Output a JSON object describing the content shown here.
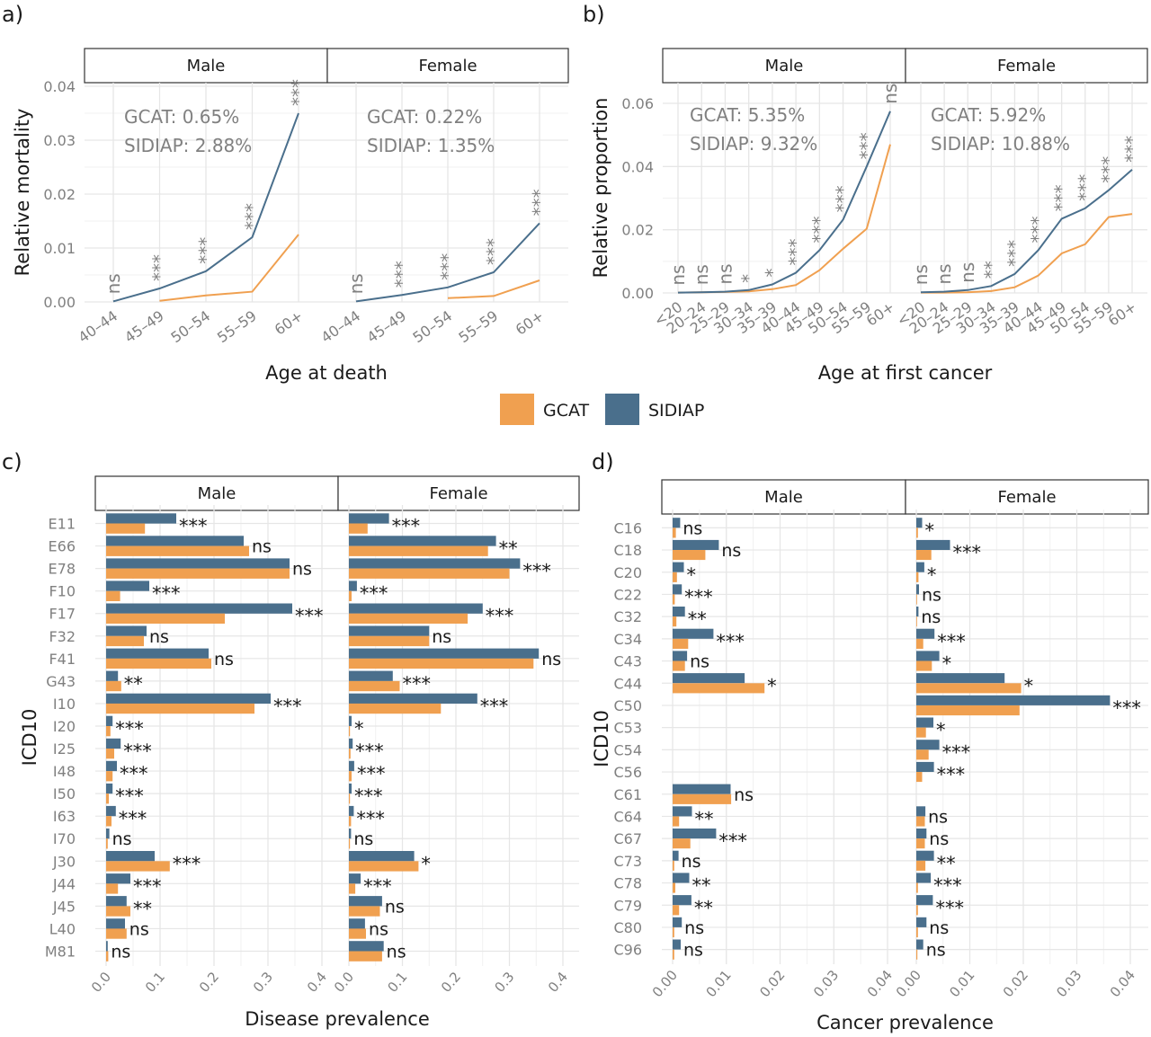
{
  "legend": {
    "items": [
      {
        "name": "GCAT",
        "color": "#f0a050"
      },
      {
        "name": "SIDIAP",
        "color": "#4a6f8c"
      }
    ]
  },
  "chart_data": [
    {
      "panel_label": "a)",
      "type": "line",
      "xlabel": "Age at death",
      "ylabel": "Relative mortality",
      "categories": [
        "40–44",
        "45–49",
        "50–54",
        "55–59",
        "60+"
      ],
      "yticks": [
        "0.00",
        "0.01",
        "0.02",
        "0.03",
        "0.04"
      ],
      "ylim": [
        0,
        0.04
      ],
      "grid": true,
      "facets": [
        {
          "name": "Male",
          "annotation": [
            "GCAT: 0.65%",
            "SIDIAP: 2.88%"
          ],
          "series": [
            {
              "name": "GCAT",
              "values": [
                null,
                0.0002,
                0.0012,
                0.0019,
                0.0125
              ]
            },
            {
              "name": "SIDIAP",
              "values": [
                0.0001,
                0.0025,
                0.0057,
                0.012,
                0.035
              ]
            }
          ],
          "significance": [
            "ns",
            "***",
            "***",
            "***",
            "***"
          ]
        },
        {
          "name": "Female",
          "annotation": [
            "GCAT: 0.22%",
            "SIDIAP: 1.35%"
          ],
          "series": [
            {
              "name": "GCAT",
              "values": [
                null,
                null,
                0.0007,
                0.0011,
                0.004
              ]
            },
            {
              "name": "SIDIAP",
              "values": [
                0.0001,
                0.0013,
                0.0027,
                0.0055,
                0.0146
              ]
            }
          ],
          "significance": [
            "ns",
            "***",
            "***",
            "***",
            "***"
          ]
        }
      ]
    },
    {
      "panel_label": "b)",
      "type": "line",
      "xlabel": "Age at first cancer",
      "ylabel": "Relative proportion",
      "categories": [
        "<20",
        "20–24",
        "25–29",
        "30–34",
        "35–39",
        "40–44",
        "45–49",
        "50–54",
        "55–59",
        "60+"
      ],
      "yticks": [
        "0.00",
        "0.02",
        "0.04",
        "0.06"
      ],
      "ylim": [
        0,
        0.06
      ],
      "grid": true,
      "facets": [
        {
          "name": "Male",
          "annotation": [
            "GCAT: 5.35%",
            "SIDIAP: 9.32%"
          ],
          "series": [
            {
              "name": "GCAT",
              "values": [
                0.0001,
                0.0002,
                0.0003,
                0.0005,
                0.0012,
                0.0025,
                0.0072,
                0.014,
                0.0203,
                0.047
              ]
            },
            {
              "name": "SIDIAP",
              "values": [
                0.0001,
                0.0002,
                0.0004,
                0.0009,
                0.0027,
                0.0064,
                0.0135,
                0.0232,
                0.04,
                0.0575
              ]
            }
          ],
          "significance": [
            "ns",
            "ns",
            "ns",
            "*",
            "*",
            "***",
            "***",
            "***",
            "***",
            "ns"
          ]
        },
        {
          "name": "Female",
          "annotation": [
            "GCAT: 5.92%",
            "SIDIAP: 10.88%"
          ],
          "series": [
            {
              "name": "GCAT",
              "values": [
                0.0001,
                0.0001,
                0.0002,
                0.0006,
                0.0018,
                0.0055,
                0.0125,
                0.0154,
                0.024,
                0.025
              ]
            },
            {
              "name": "SIDIAP",
              "values": [
                0.0002,
                0.0004,
                0.0009,
                0.0022,
                0.006,
                0.0135,
                0.0235,
                0.0268,
                0.0325,
                0.039
              ]
            }
          ],
          "significance": [
            "ns",
            "ns",
            "ns",
            "**",
            "***",
            "***",
            "***",
            "***",
            "***",
            "***"
          ]
        }
      ]
    },
    {
      "panel_label": "c)",
      "type": "bar",
      "orientation": "horizontal",
      "xlabel": "Disease prevalence",
      "ylabel": "ICD10",
      "categories": [
        "E11",
        "E66",
        "E78",
        "F10",
        "F17",
        "F32",
        "F41",
        "G43",
        "I10",
        "I20",
        "I25",
        "I48",
        "I50",
        "I63",
        "I70",
        "J30",
        "J44",
        "J45",
        "L40",
        "M81"
      ],
      "xticks": [
        "0.0",
        "0.1",
        "0.2",
        "0.3",
        "0.4"
      ],
      "xlim": [
        0,
        0.4
      ],
      "grid": true,
      "facets": [
        {
          "name": "Male",
          "series": [
            {
              "name": "SIDIAP",
              "values": [
                0.13,
                0.255,
                0.34,
                0.08,
                0.345,
                0.075,
                0.19,
                0.022,
                0.305,
                0.012,
                0.027,
                0.02,
                0.012,
                0.018,
                0.006,
                0.09,
                0.045,
                0.038,
                0.035,
                0.003
              ]
            },
            {
              "name": "GCAT",
              "values": [
                0.072,
                0.265,
                0.34,
                0.026,
                0.22,
                0.07,
                0.195,
                0.028,
                0.275,
                0.008,
                0.015,
                0.012,
                0.005,
                0.01,
                0.003,
                0.118,
                0.022,
                0.045,
                0.038,
                0.004
              ]
            }
          ],
          "significance": [
            "***",
            "ns",
            "ns",
            "***",
            "***",
            "ns",
            "ns",
            "**",
            "***",
            "***",
            "***",
            "***",
            "***",
            "***",
            "ns",
            "***",
            "***",
            "**",
            "ns",
            "ns"
          ]
        },
        {
          "name": "Female",
          "series": [
            {
              "name": "SIDIAP",
              "values": [
                0.075,
                0.275,
                0.32,
                0.015,
                0.25,
                0.15,
                0.355,
                0.082,
                0.24,
                0.005,
                0.007,
                0.01,
                0.005,
                0.009,
                0.004,
                0.122,
                0.022,
                0.062,
                0.03,
                0.065
              ]
            },
            {
              "name": "GCAT",
              "values": [
                0.035,
                0.26,
                0.3,
                0.005,
                0.222,
                0.15,
                0.345,
                0.095,
                0.172,
                0.002,
                0.003,
                0.005,
                0.002,
                0.004,
                0.002,
                0.13,
                0.012,
                0.058,
                0.032,
                0.062
              ]
            }
          ],
          "significance": [
            "***",
            "**",
            "***",
            "***",
            "***",
            "ns",
            "ns",
            "***",
            "***",
            "*",
            "***",
            "***",
            "***",
            "***",
            "ns",
            "*",
            "***",
            "ns",
            "ns",
            "ns"
          ]
        }
      ]
    },
    {
      "panel_label": "d)",
      "type": "bar",
      "orientation": "horizontal",
      "xlabel": "Cancer prevalence",
      "ylabel": "ICD10",
      "categories": [
        "C16",
        "C18",
        "C20",
        "C22",
        "C32",
        "C34",
        "C43",
        "C44",
        "C50",
        "C53",
        "C54",
        "C56",
        "C61",
        "C64",
        "C67",
        "C73",
        "C78",
        "C79",
        "C80",
        "C96"
      ],
      "xticks": [
        "0.00",
        "0.01",
        "0.02",
        "0.03",
        "0.04"
      ],
      "xlim": [
        0,
        0.04
      ],
      "grid": true,
      "facets": [
        {
          "name": "Male",
          "series": [
            {
              "name": "SIDIAP",
              "values": [
                0.0014,
                0.0086,
                0.0021,
                0.0017,
                0.0023,
                0.0076,
                0.0027,
                0.0134,
                null,
                null,
                null,
                null,
                0.0108,
                0.0036,
                0.0081,
                0.0011,
                0.0031,
                0.0035,
                0.0017,
                0.0015
              ]
            },
            {
              "name": "GCAT",
              "values": [
                0.0006,
                0.0061,
                0.0008,
                0.0004,
                0.0007,
                0.0029,
                0.0023,
                0.0171,
                null,
                null,
                null,
                null,
                0.0109,
                0.0012,
                0.0033,
                0.0003,
                0.0005,
                0.0012,
                0.0003,
                0.0003
              ]
            }
          ],
          "significance": [
            "ns",
            "ns",
            "*",
            "***",
            "**",
            "***",
            "ns",
            "*",
            null,
            null,
            null,
            null,
            "ns",
            "**",
            "***",
            "ns",
            "**",
            "**",
            "ns",
            "ns"
          ]
        },
        {
          "name": "Female",
          "series": [
            {
              "name": "SIDIAP",
              "values": [
                0.0011,
                0.0063,
                0.0015,
                0.0005,
                0.0004,
                0.0034,
                0.0043,
                0.0165,
                0.0362,
                0.0032,
                0.0043,
                0.0033,
                null,
                0.0017,
                0.0019,
                0.0033,
                0.0027,
                0.0031,
                0.0019,
                0.0013
              ]
            },
            {
              "name": "GCAT",
              "values": [
                0.0003,
                0.0028,
                0.0004,
                0.0001,
                0.0001,
                0.0013,
                0.0029,
                0.0196,
                0.0193,
                0.0018,
                0.0023,
                0.0011,
                null,
                0.0016,
                0.0016,
                0.0017,
                0.0003,
                0.0003,
                0.0003,
                0.0002
              ]
            }
          ],
          "significance": [
            "*",
            "***",
            "*",
            "ns",
            "ns",
            "***",
            "*",
            "*",
            "***",
            "*",
            "***",
            "***",
            null,
            "ns",
            "ns",
            "**",
            "***",
            "***",
            "ns",
            "ns"
          ]
        }
      ]
    }
  ]
}
